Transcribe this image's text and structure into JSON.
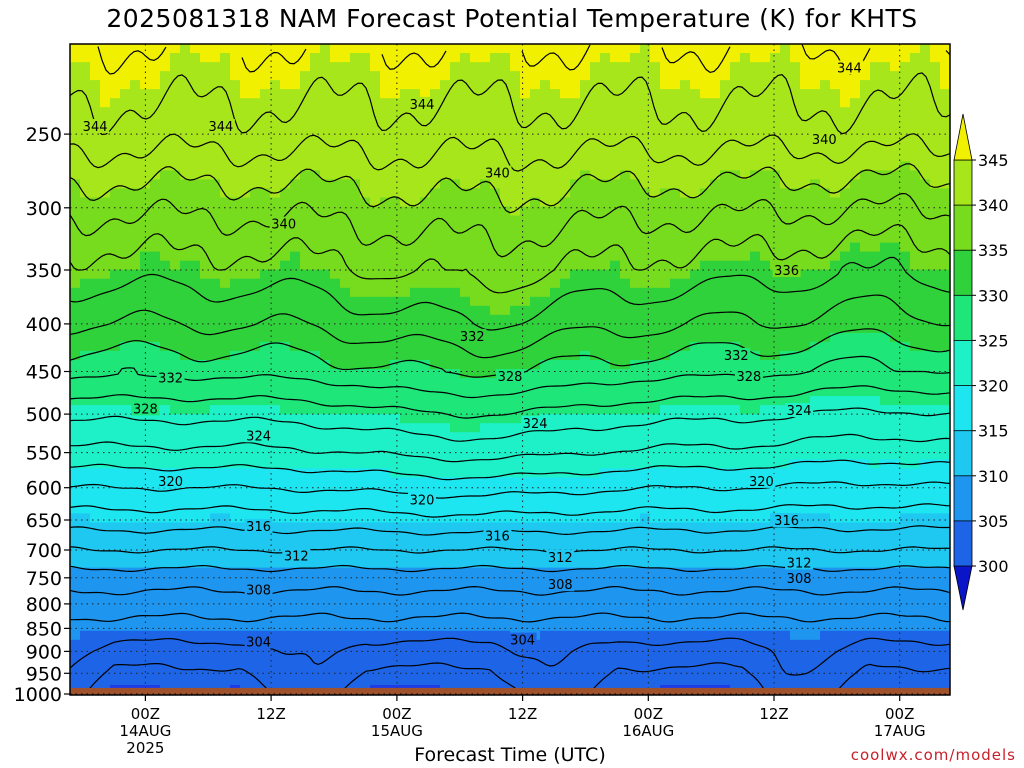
{
  "title": "2025081318 NAM Forecast Potential Temperature (K) for KHTS",
  "credit": "coolwx.com/models",
  "chart_data": {
    "type": "contour",
    "title": "2025081318 NAM Forecast Potential Temperature (K) for KHTS",
    "xlabel": "Forecast Time (UTC)",
    "ylabel": "",
    "y_axis": {
      "scale": "log",
      "direction": "inverted",
      "range_hpa": [
        1000,
        200
      ],
      "ticks": [
        250,
        300,
        350,
        400,
        450,
        500,
        550,
        600,
        650,
        700,
        750,
        800,
        850,
        900,
        950,
        1000
      ]
    },
    "x_axis": {
      "range_hours": [
        -6,
        64
      ],
      "ticks": [
        {
          "hour": 0,
          "time": "00Z",
          "date": "14AUG",
          "year": "2025"
        },
        {
          "hour": 10,
          "time": "12Z",
          "date": "",
          "year": ""
        },
        {
          "hour": 20,
          "time": "00Z",
          "date": "15AUG",
          "year": ""
        },
        {
          "hour": 30,
          "time": "12Z",
          "date": "",
          "year": ""
        },
        {
          "hour": 40,
          "time": "00Z",
          "date": "16AUG",
          "year": ""
        },
        {
          "hour": 50,
          "time": "12Z",
          "date": "",
          "year": ""
        },
        {
          "hour": 60,
          "time": "00Z",
          "date": "17AUG",
          "year": ""
        }
      ]
    },
    "grid": true,
    "colorbar": {
      "position": "right",
      "labels": [
        "345",
        "340",
        "335",
        "330",
        "325",
        "320",
        "315",
        "310",
        "305",
        "300"
      ],
      "bins": [
        {
          "from": 345,
          "color": "#f0f000"
        },
        {
          "from": 340,
          "color": "#a8e61c"
        },
        {
          "from": 335,
          "color": "#78dc1e"
        },
        {
          "from": 330,
          "color": "#30d23c"
        },
        {
          "from": 325,
          "color": "#1ee678"
        },
        {
          "from": 320,
          "color": "#1ef0c8"
        },
        {
          "from": 315,
          "color": "#1ee6f0"
        },
        {
          "from": 310,
          "color": "#1ec8f0"
        },
        {
          "from": 305,
          "color": "#1e96f0"
        },
        {
          "from": 300,
          "color": "#1e64e6"
        },
        {
          "from": 295,
          "color": "#1e3ce6"
        },
        {
          "from": 290,
          "color": "#0a14c8"
        }
      ]
    },
    "contour_interval_k": 4,
    "contour_labels": [
      {
        "value": "344",
        "hour": -4,
        "hpa": 245
      },
      {
        "value": "344",
        "hour": 6,
        "hpa": 245
      },
      {
        "value": "344",
        "hour": 22,
        "hpa": 232
      },
      {
        "value": "344",
        "hour": 56,
        "hpa": 212
      },
      {
        "value": "340",
        "hour": 54,
        "hpa": 253
      },
      {
        "value": "340",
        "hour": 28,
        "hpa": 275
      },
      {
        "value": "340",
        "hour": 11,
        "hpa": 312
      },
      {
        "value": "336",
        "hour": 51,
        "hpa": 350
      },
      {
        "value": "332",
        "hour": 26,
        "hpa": 412
      },
      {
        "value": "332",
        "hour": 47,
        "hpa": 432
      },
      {
        "value": "332",
        "hour": 2,
        "hpa": 457
      },
      {
        "value": "328",
        "hour": 29,
        "hpa": 455
      },
      {
        "value": "328",
        "hour": 48,
        "hpa": 455
      },
      {
        "value": "328",
        "hour": 0,
        "hpa": 493
      },
      {
        "value": "324",
        "hour": 9,
        "hpa": 527
      },
      {
        "value": "324",
        "hour": 31,
        "hpa": 511
      },
      {
        "value": "324",
        "hour": 52,
        "hpa": 495
      },
      {
        "value": "320",
        "hour": 2,
        "hpa": 590
      },
      {
        "value": "320",
        "hour": 22,
        "hpa": 618
      },
      {
        "value": "320",
        "hour": 49,
        "hpa": 590
      },
      {
        "value": "316",
        "hour": 9,
        "hpa": 660
      },
      {
        "value": "316",
        "hour": 28,
        "hpa": 675
      },
      {
        "value": "316",
        "hour": 51,
        "hpa": 650
      },
      {
        "value": "312",
        "hour": 12,
        "hpa": 710
      },
      {
        "value": "312",
        "hour": 33,
        "hpa": 712
      },
      {
        "value": "312",
        "hour": 52,
        "hpa": 722
      },
      {
        "value": "308",
        "hour": 9,
        "hpa": 772
      },
      {
        "value": "308",
        "hour": 33,
        "hpa": 762
      },
      {
        "value": "308",
        "hour": 52,
        "hpa": 750
      },
      {
        "value": "304",
        "hour": 9,
        "hpa": 878
      },
      {
        "value": "304",
        "hour": 30,
        "hpa": 874
      }
    ],
    "terrain": {
      "color": "#a0522d",
      "from_hpa": 985
    }
  }
}
